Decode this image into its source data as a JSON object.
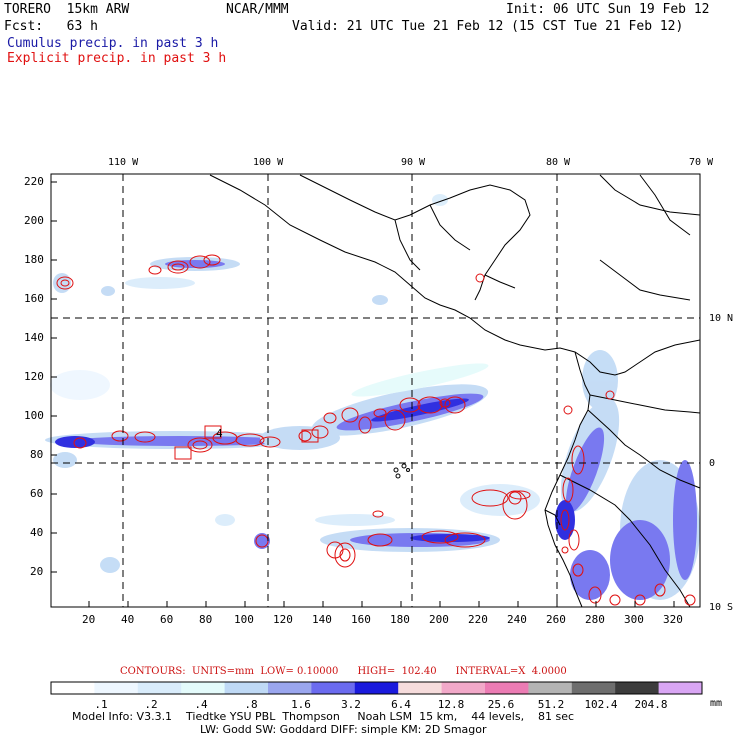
{
  "header": {
    "model": "TORERO  15km ARW",
    "org": "NCAR/MMM",
    "init": "Init: 06 UTC Sun 19 Feb 12",
    "fcst": "Fcst:   63 h",
    "valid": "Valid: 21 UTC Tue 21 Feb 12 (15 CST Tue 21 Feb 12)",
    "field1": "Cumulus precip. in past 3 h",
    "field2": "Explicit precip. in past 3 h",
    "field1_color": "#1a1aa6",
    "field2_color": "#e01010"
  },
  "map": {
    "lon_labels": [
      "110 W",
      "100 W",
      "90 W",
      "80 W",
      "70 W"
    ],
    "lat_labels": [
      "10 N",
      "0",
      "10 S"
    ],
    "y_ticks": [
      "220",
      "200",
      "180",
      "160",
      "140",
      "120",
      "100",
      "80",
      "60",
      "40",
      "20"
    ],
    "x_ticks": [
      "20",
      "40",
      "60",
      "80",
      "100",
      "120",
      "140",
      "160",
      "180",
      "200",
      "220",
      "240",
      "260",
      "280",
      "300",
      "320"
    ],
    "box_label": "4"
  },
  "contours": {
    "text": "CONTOURS:  UNITS=mm  LOW= 0.10000      HIGH=  102.40      INTERVAL=X  4.0000",
    "color": "#cc1111"
  },
  "colorbar": {
    "labels": [
      ".1",
      ".2",
      ".4",
      ".8",
      "1.6",
      "3.2",
      "6.4",
      "12.8",
      "25.6",
      "51.2",
      "102.4",
      "204.8"
    ],
    "units": "mm",
    "colors": [
      "#ffffff",
      "#eef7ff",
      "#d9ecfb",
      "#e4fbfb",
      "#bfd9f5",
      "#9aa6ee",
      "#6b6bef",
      "#1a1add",
      "#f6dcdc",
      "#f2a9c9",
      "#ec7cb4",
      "#b4b4b4",
      "#6e6e6e",
      "#3c3c3c",
      "#d9a6f4"
    ]
  },
  "footer": {
    "line1": "Model Info: V3.3.1    Tiedtke YSU PBL  Thompson     Noah LSM  15 km,    44 levels,    81 sec",
    "line2": "LW: Godd SW: Goddard DIFF: simple KM: 2D Smagor"
  }
}
